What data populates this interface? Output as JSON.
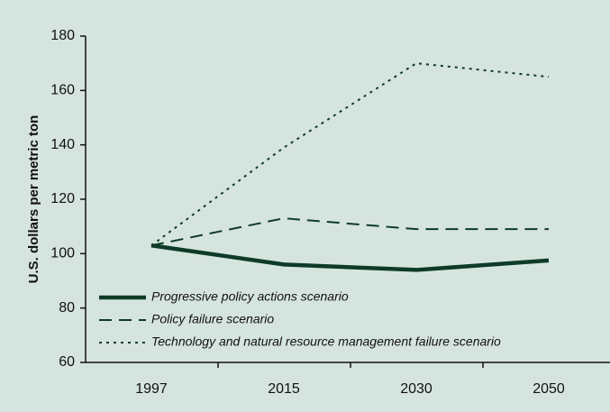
{
  "chart_data": {
    "type": "line",
    "y_label": "U.S. dollars per metric ton",
    "categories": [
      "1997",
      "2015",
      "2030",
      "2050"
    ],
    "series": [
      {
        "name": "Progressive policy actions scenario",
        "color": "#0e3b27",
        "dash": "solid",
        "values": [
          103,
          96,
          94,
          97.5
        ]
      },
      {
        "name": "Policy failure scenario",
        "color": "#0e3b27",
        "dash": "dashed",
        "values": [
          103,
          113,
          109,
          109
        ]
      },
      {
        "name": "Technology and natural resource management failure scenario",
        "color": "#0e3b27",
        "dash": "dotted",
        "values": [
          103,
          139,
          170,
          165
        ]
      }
    ],
    "ylim": [
      60,
      180
    ],
    "yticks": [
      60,
      80,
      100,
      120,
      140,
      160,
      180
    ],
    "grid": false,
    "legend": "lower left"
  }
}
